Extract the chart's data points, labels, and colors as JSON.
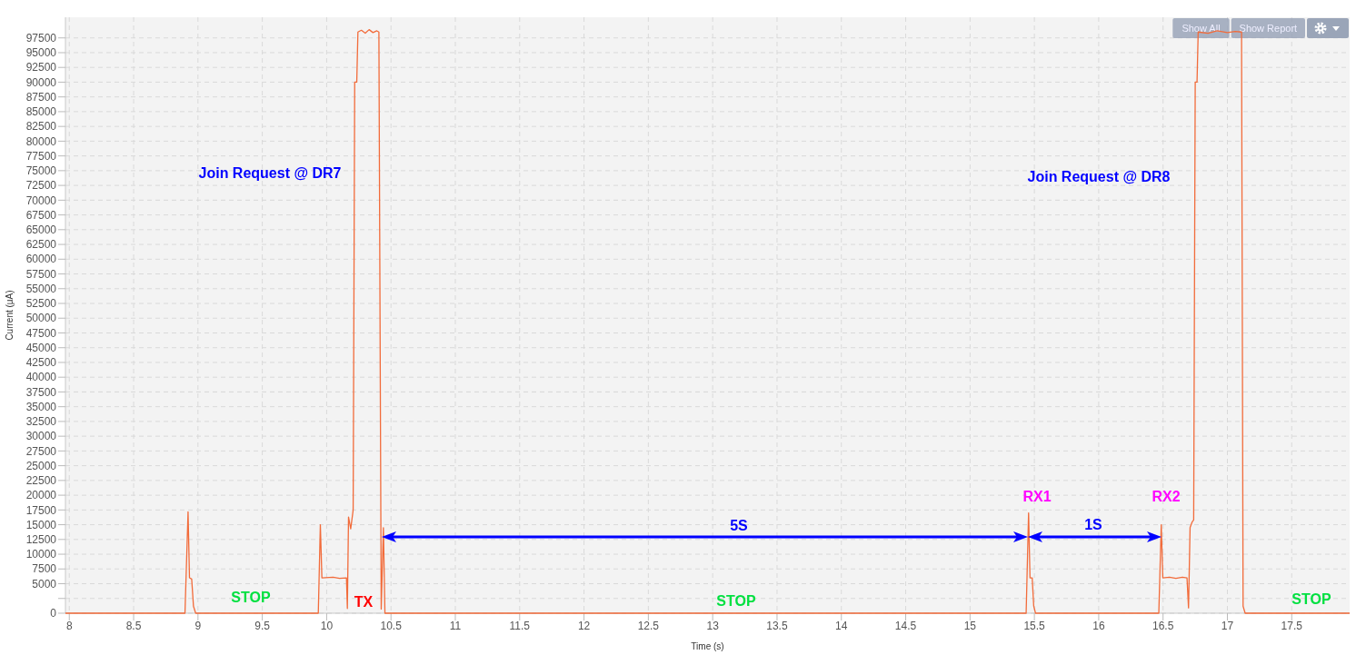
{
  "chart_data": {
    "type": "line",
    "xlabel": "Time (s)",
    "ylabel": "Current (μA)",
    "xlim": [
      7.97,
      17.95
    ],
    "ylim": [
      0,
      101000
    ],
    "xticks": [
      8,
      8.5,
      9,
      9.5,
      10,
      10.5,
      11,
      11.5,
      12,
      12.5,
      13,
      13.5,
      14,
      14.5,
      15,
      15.5,
      16,
      16.5,
      17,
      17.5
    ],
    "yticks": [
      0,
      {
        "value": 2500,
        "label": null
      },
      5000,
      7500,
      10000,
      12500,
      15000,
      17500,
      20000,
      22500,
      25000,
      27500,
      30000,
      32500,
      35000,
      37500,
      40000,
      42500,
      45000,
      47500,
      50000,
      52500,
      55000,
      57500,
      60000,
      62500,
      65000,
      67500,
      70000,
      72500,
      75000,
      77500,
      80000,
      82500,
      85000,
      87500,
      90000,
      92500,
      95000,
      97500
    ],
    "grid": true,
    "series": [
      {
        "color": "#f26b3a",
        "x": [
          7.97,
          8.899,
          8.923,
          8.934,
          8.951,
          8.965,
          8.982,
          9.935,
          9.951,
          9.963,
          10.05,
          10.1,
          10.154,
          10.161,
          10.17,
          10.187,
          10.206,
          10.218,
          10.234,
          10.243,
          10.27,
          10.3,
          10.33,
          10.36,
          10.39,
          10.406,
          10.424,
          10.441,
          10.453,
          15.436,
          15.455,
          15.466,
          15.483,
          15.495,
          15.509,
          16.467,
          16.486,
          16.498,
          16.55,
          16.6,
          16.65,
          16.686,
          16.698,
          16.71,
          16.727,
          16.738,
          16.75,
          16.764,
          16.773,
          16.85,
          16.92,
          17.0,
          17.06,
          17.11,
          17.122,
          17.138,
          17.95
        ],
        "values": [
          0,
          0,
          17200,
          6000,
          5800,
          1200,
          0,
          0,
          15000,
          6000,
          6100,
          5900,
          6000,
          800,
          16300,
          14300,
          17500,
          90000,
          90000,
          98500,
          98800,
          98300,
          98900,
          98400,
          98700,
          98500,
          700,
          14500,
          0,
          0,
          17000,
          6000,
          6000,
          1200,
          0,
          0,
          15000,
          6000,
          6100,
          5900,
          6100,
          6000,
          900,
          14500,
          15500,
          15800,
          90000,
          90000,
          98500,
          98300,
          98700,
          98400,
          98600,
          98500,
          1200,
          0,
          0
        ]
      }
    ],
    "annotations": [
      "Join Request @ DR7",
      "Join Request @ DR8",
      "STOP",
      "TX",
      "STOP",
      "STOP",
      "RX1",
      "RX2",
      "5S",
      "1S",
      "Show All",
      "Show Report"
    ]
  }
}
